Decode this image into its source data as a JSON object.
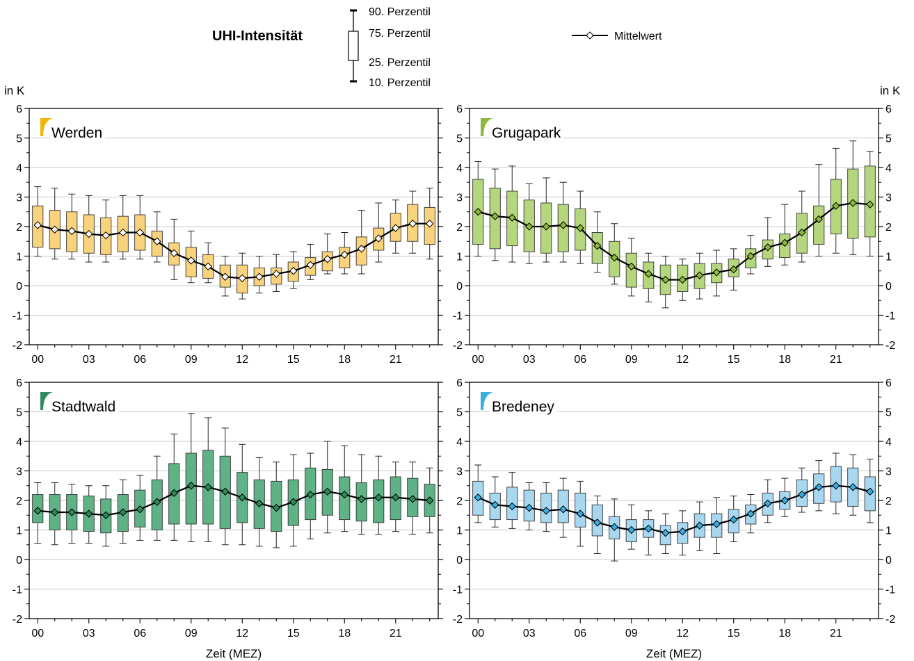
{
  "legend": {
    "title": "UHI-Intensität",
    "p90": "90. Perzentil",
    "p75": "75. Perzentil",
    "p25": "25. Perzentil",
    "p10": "10. Perzentil",
    "mean": "Mittelwert"
  },
  "unit_left": "in K",
  "unit_right": "in K",
  "chart_data": [
    {
      "type": "boxplot",
      "title": "Werden",
      "xlabel": "",
      "ylabel": "in K",
      "ylim": [
        -2,
        6
      ],
      "yticks": [
        "-2",
        "-1",
        "0",
        "1",
        "2",
        "3",
        "4",
        "5",
        "6"
      ],
      "xticks": [
        "00",
        "03",
        "06",
        "09",
        "12",
        "15",
        "18",
        "21"
      ],
      "hours": [
        0,
        1,
        2,
        3,
        4,
        5,
        6,
        7,
        8,
        9,
        10,
        11,
        12,
        13,
        14,
        15,
        16,
        17,
        18,
        19,
        20,
        21,
        22,
        23
      ],
      "color": "#f9d27c",
      "marker_color": "#ffffff",
      "p10": [
        1.0,
        0.9,
        0.9,
        0.8,
        0.8,
        0.9,
        0.9,
        0.8,
        0.2,
        0.1,
        0.1,
        -0.35,
        -0.45,
        -0.25,
        -0.2,
        -0.1,
        0.2,
        0.4,
        0.4,
        0.4,
        0.8,
        1.1,
        1.1,
        0.9
      ],
      "p25": [
        1.3,
        1.25,
        1.15,
        1.1,
        1.05,
        1.15,
        1.2,
        1.0,
        0.7,
        0.3,
        0.25,
        -0.05,
        -0.25,
        0.0,
        0.05,
        0.15,
        0.35,
        0.5,
        0.6,
        0.7,
        1.2,
        1.5,
        1.5,
        1.4
      ],
      "p75": [
        2.7,
        2.55,
        2.5,
        2.4,
        2.3,
        2.35,
        2.4,
        1.85,
        1.45,
        1.3,
        1.05,
        0.7,
        0.7,
        0.6,
        0.6,
        0.8,
        0.95,
        1.15,
        1.3,
        1.65,
        1.95,
        2.45,
        2.75,
        2.65
      ],
      "p90": [
        3.35,
        3.3,
        3.1,
        3.05,
        2.9,
        3.05,
        3.05,
        2.5,
        2.25,
        1.85,
        1.45,
        1.0,
        1.1,
        1.0,
        1.05,
        1.15,
        1.4,
        1.75,
        1.8,
        2.55,
        2.8,
        2.9,
        3.2,
        3.3
      ],
      "mean": [
        2.05,
        1.9,
        1.85,
        1.75,
        1.7,
        1.8,
        1.8,
        1.5,
        1.1,
        0.85,
        0.65,
        0.3,
        0.25,
        0.3,
        0.4,
        0.5,
        0.7,
        0.9,
        1.05,
        1.25,
        1.6,
        1.95,
        2.1,
        2.1
      ]
    },
    {
      "type": "boxplot",
      "title": "Grugapark",
      "xlabel": "",
      "ylabel": "",
      "ylim": [
        -2,
        6
      ],
      "yticks": [
        "-2",
        "-1",
        "0",
        "1",
        "2",
        "3",
        "4",
        "5",
        "6"
      ],
      "xticks": [
        "00",
        "03",
        "06",
        "09",
        "12",
        "15",
        "18",
        "21"
      ],
      "hours": [
        0,
        1,
        2,
        3,
        4,
        5,
        6,
        7,
        8,
        9,
        10,
        11,
        12,
        13,
        14,
        15,
        16,
        17,
        18,
        19,
        20,
        21,
        22,
        23
      ],
      "color": "#b5d67c",
      "marker_color": "#8cb940",
      "p10": [
        1.0,
        0.85,
        0.8,
        0.75,
        0.8,
        0.8,
        0.75,
        0.45,
        0.05,
        -0.35,
        -0.55,
        -0.75,
        -0.5,
        -0.45,
        -0.35,
        -0.15,
        0.4,
        0.65,
        0.7,
        0.8,
        1.0,
        1.1,
        1.05,
        1.0
      ],
      "p25": [
        1.4,
        1.25,
        1.35,
        1.15,
        1.1,
        1.15,
        1.2,
        0.75,
        0.3,
        -0.05,
        -0.1,
        -0.3,
        -0.2,
        -0.1,
        0.1,
        0.3,
        0.6,
        0.9,
        0.95,
        1.1,
        1.4,
        1.75,
        1.6,
        1.65
      ],
      "p75": [
        3.6,
        3.3,
        3.2,
        2.9,
        2.8,
        2.75,
        2.6,
        1.8,
        1.5,
        1.1,
        0.8,
        0.7,
        0.7,
        0.75,
        0.75,
        0.9,
        1.25,
        1.55,
        1.75,
        2.45,
        2.7,
        3.6,
        3.95,
        4.05
      ],
      "p90": [
        4.2,
        3.95,
        4.05,
        3.45,
        3.65,
        3.5,
        3.2,
        2.5,
        2.1,
        1.6,
        1.1,
        1.0,
        0.9,
        1.1,
        1.2,
        1.25,
        1.7,
        2.3,
        2.75,
        3.2,
        4.1,
        4.65,
        4.9,
        4.55
      ],
      "mean": [
        2.5,
        2.35,
        2.3,
        2.0,
        2.0,
        2.05,
        1.95,
        1.35,
        0.95,
        0.65,
        0.4,
        0.2,
        0.2,
        0.35,
        0.45,
        0.55,
        1.0,
        1.3,
        1.45,
        1.8,
        2.25,
        2.7,
        2.8,
        2.75
      ]
    },
    {
      "type": "boxplot",
      "title": "Stadtwald",
      "xlabel": "Zeit (MEZ)",
      "ylabel": "",
      "ylim": [
        -2,
        6
      ],
      "yticks": [
        "-2",
        "-1",
        "0",
        "1",
        "2",
        "3",
        "4",
        "5",
        "6"
      ],
      "xticks": [
        "00",
        "03",
        "06",
        "09",
        "12",
        "15",
        "18",
        "21"
      ],
      "hours": [
        0,
        1,
        2,
        3,
        4,
        5,
        6,
        7,
        8,
        9,
        10,
        11,
        12,
        13,
        14,
        15,
        16,
        17,
        18,
        19,
        20,
        21,
        22,
        23
      ],
      "color": "#5fb286",
      "marker_color": "#2e8a5c",
      "p10": [
        0.55,
        0.5,
        0.55,
        0.55,
        0.45,
        0.55,
        0.65,
        0.65,
        0.65,
        0.6,
        0.6,
        0.5,
        0.5,
        0.45,
        0.4,
        0.45,
        0.7,
        0.9,
        0.95,
        0.85,
        0.85,
        0.95,
        0.85,
        0.9
      ],
      "p25": [
        1.25,
        1.0,
        1.0,
        0.95,
        0.9,
        0.95,
        1.1,
        1.0,
        1.2,
        1.2,
        1.2,
        1.05,
        1.25,
        1.05,
        0.95,
        1.15,
        1.35,
        1.5,
        1.35,
        1.3,
        1.25,
        1.35,
        1.45,
        1.45
      ],
      "p75": [
        2.2,
        2.2,
        2.2,
        2.15,
        2.05,
        2.2,
        2.35,
        2.7,
        3.25,
        3.6,
        3.7,
        3.5,
        2.95,
        2.7,
        2.65,
        2.7,
        3.1,
        3.05,
        2.8,
        2.6,
        2.7,
        2.8,
        2.75,
        2.55
      ],
      "p90": [
        2.6,
        2.6,
        2.55,
        2.5,
        2.5,
        2.7,
        2.85,
        3.5,
        4.25,
        4.95,
        4.8,
        4.45,
        3.9,
        3.45,
        3.3,
        3.55,
        3.6,
        4.0,
        3.85,
        3.55,
        3.5,
        3.3,
        3.3,
        3.1
      ],
      "mean": [
        1.65,
        1.6,
        1.6,
        1.55,
        1.5,
        1.6,
        1.7,
        1.95,
        2.25,
        2.5,
        2.45,
        2.3,
        2.1,
        1.9,
        1.75,
        1.95,
        2.2,
        2.3,
        2.2,
        2.05,
        2.1,
        2.1,
        2.05,
        2.0
      ]
    },
    {
      "type": "boxplot",
      "title": "Bredeney",
      "xlabel": "Zeit (MEZ)",
      "ylabel": "in K",
      "ylim": [
        -2,
        6
      ],
      "yticks": [
        "-2",
        "-1",
        "0",
        "1",
        "2",
        "3",
        "4",
        "5",
        "6"
      ],
      "xticks": [
        "00",
        "03",
        "06",
        "09",
        "12",
        "15",
        "18",
        "21"
      ],
      "hours": [
        0,
        1,
        2,
        3,
        4,
        5,
        6,
        7,
        8,
        9,
        10,
        11,
        12,
        13,
        14,
        15,
        16,
        17,
        18,
        19,
        20,
        21,
        22,
        23
      ],
      "color": "#a8d8f0",
      "marker_color": "#3aaee0",
      "p10": [
        1.25,
        1.1,
        1.05,
        1.0,
        0.95,
        0.75,
        0.45,
        0.2,
        -0.05,
        0.35,
        0.15,
        0.2,
        0.15,
        0.3,
        0.2,
        0.6,
        0.9,
        1.25,
        1.45,
        1.6,
        1.65,
        1.55,
        1.5,
        1.25
      ],
      "p25": [
        1.5,
        1.35,
        1.35,
        1.3,
        1.25,
        1.25,
        1.1,
        0.8,
        0.7,
        0.6,
        0.75,
        0.5,
        0.55,
        0.75,
        0.75,
        0.9,
        1.2,
        1.5,
        1.7,
        1.8,
        1.9,
        1.95,
        1.8,
        1.65
      ],
      "p75": [
        2.65,
        2.25,
        2.45,
        2.35,
        2.25,
        2.35,
        2.25,
        1.85,
        1.45,
        1.35,
        1.35,
        1.15,
        1.25,
        1.55,
        1.55,
        1.7,
        1.85,
        2.25,
        2.3,
        2.7,
        2.9,
        3.15,
        3.1,
        2.8
      ],
      "p90": [
        3.2,
        2.8,
        2.95,
        2.6,
        2.6,
        2.75,
        2.65,
        2.15,
        2.05,
        1.85,
        1.65,
        1.55,
        1.65,
        1.95,
        2.1,
        2.15,
        2.2,
        2.7,
        2.75,
        3.1,
        3.35,
        3.6,
        3.55,
        3.4
      ],
      "mean": [
        2.1,
        1.85,
        1.8,
        1.75,
        1.65,
        1.7,
        1.55,
        1.25,
        1.1,
        1.0,
        1.05,
        0.9,
        0.95,
        1.15,
        1.2,
        1.35,
        1.55,
        1.9,
        2.0,
        2.2,
        2.45,
        2.5,
        2.45,
        2.3
      ]
    }
  ]
}
